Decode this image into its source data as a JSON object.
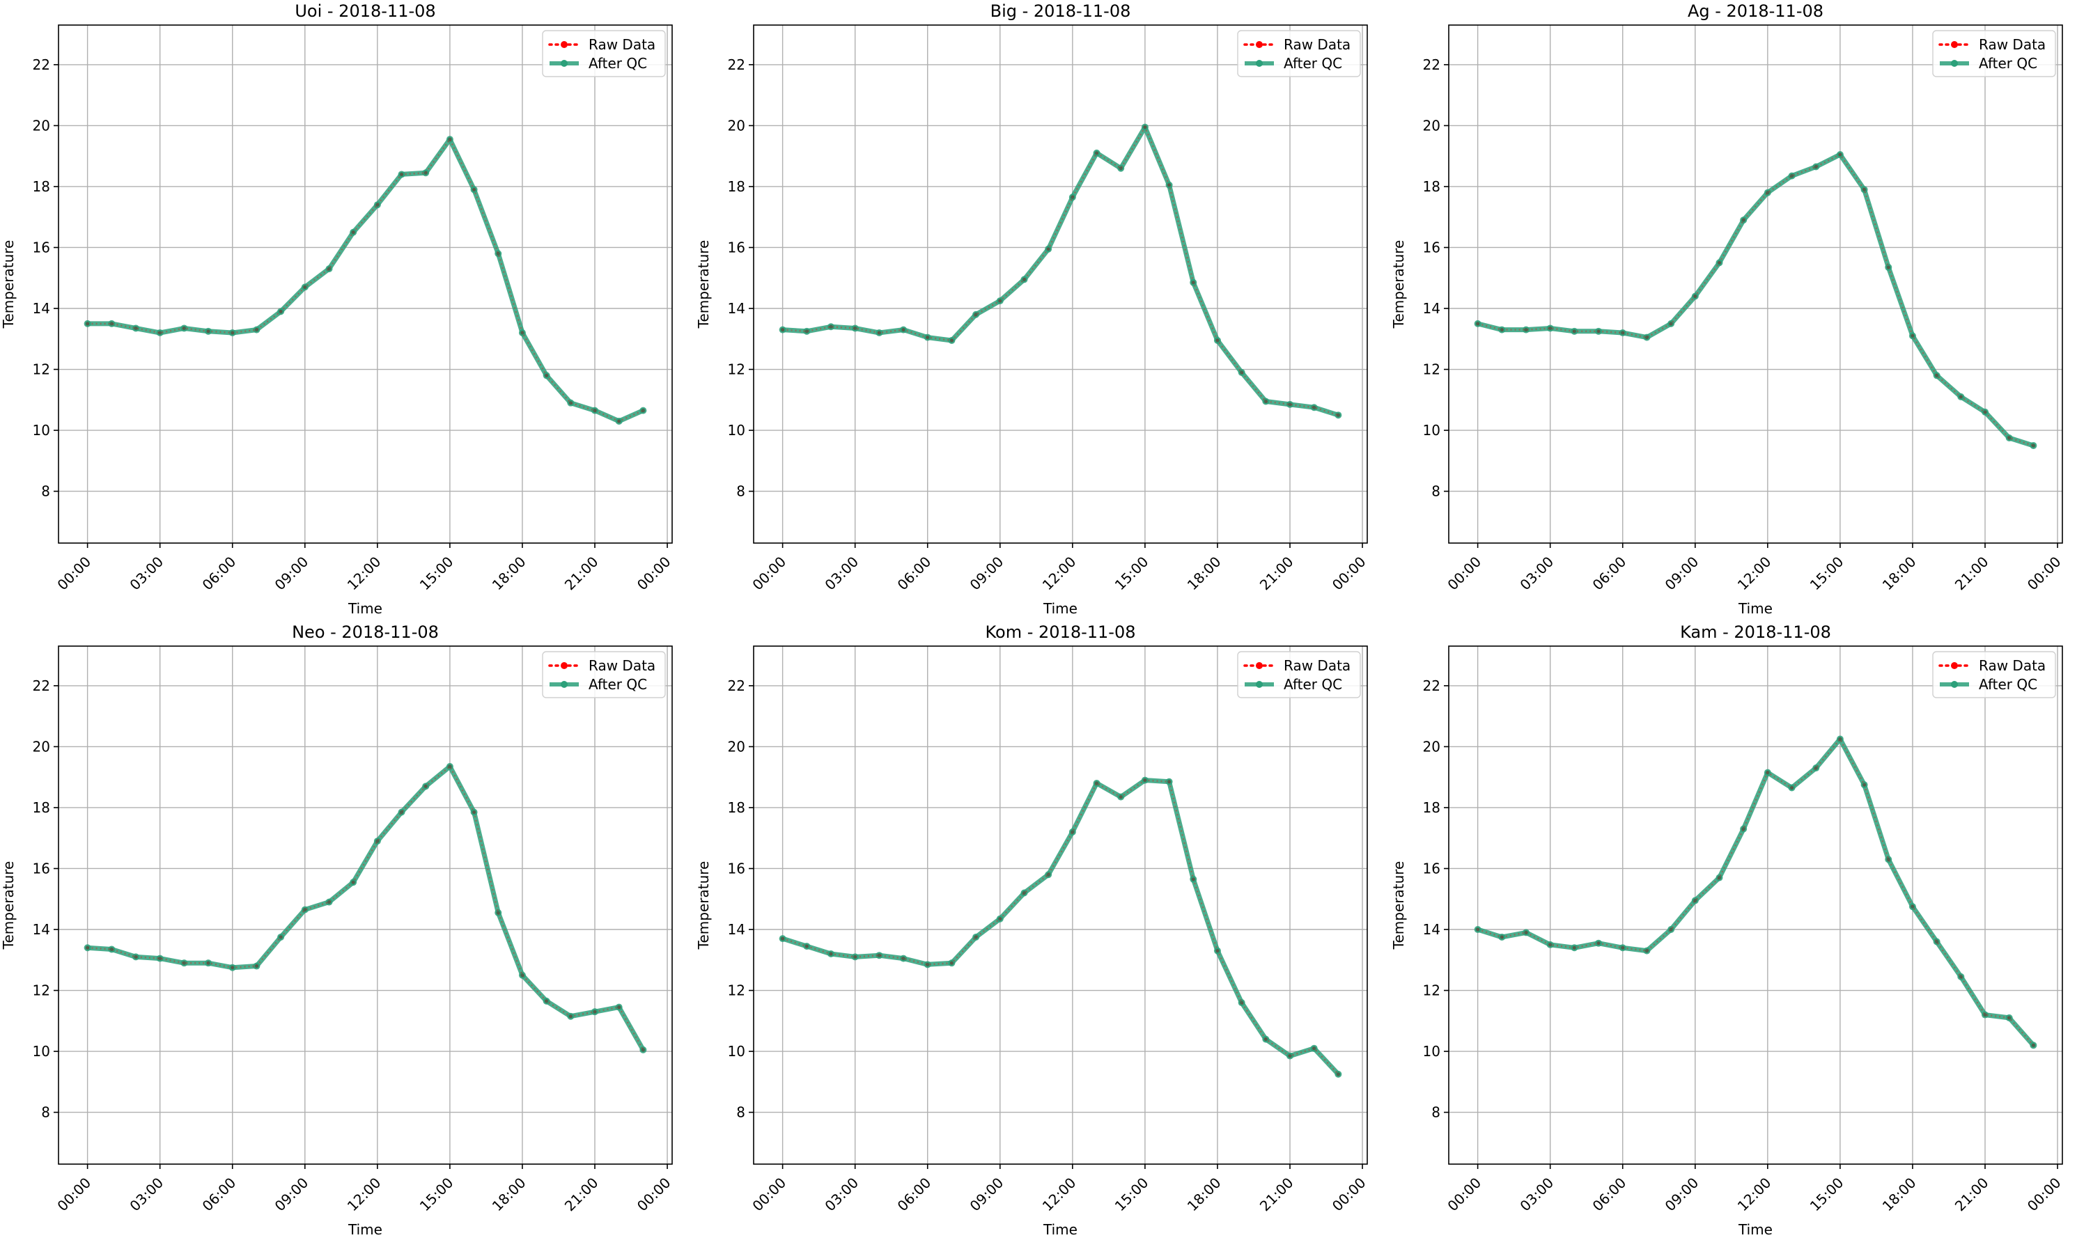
{
  "colors": {
    "raw": "#ff0000",
    "qc": "#2ca07a",
    "grid": "#b0b0b0",
    "axis": "#000000"
  },
  "chart_data": [
    {
      "type": "line",
      "title": "Uoi - 2018-11-08",
      "xlabel": "Time",
      "ylabel": "Temperature",
      "x_ticks": [
        "00:00",
        "03:00",
        "06:00",
        "09:00",
        "12:00",
        "15:00",
        "18:00",
        "21:00",
        "00:00"
      ],
      "y_ticks": [
        8,
        10,
        12,
        14,
        16,
        18,
        20,
        22
      ],
      "xlim": [
        -1.2,
        24.2
      ],
      "ylim": [
        6.3,
        23.3
      ],
      "grid": true,
      "legend": "top-right",
      "series": [
        {
          "name": "Raw Data",
          "style": "dotted",
          "values": [
            13.5,
            13.5,
            13.35,
            13.2,
            13.35,
            13.25,
            13.2,
            13.3,
            13.9,
            14.7,
            15.3,
            16.5,
            17.4,
            18.4,
            18.45,
            19.55,
            17.9,
            15.8,
            13.2,
            11.8,
            10.9,
            10.65,
            10.3,
            10.65
          ]
        },
        {
          "name": "After QC",
          "style": "solid",
          "values": [
            13.5,
            13.5,
            13.35,
            13.2,
            13.35,
            13.25,
            13.2,
            13.3,
            13.9,
            14.7,
            15.3,
            16.5,
            17.4,
            18.4,
            18.45,
            19.55,
            17.9,
            15.8,
            13.2,
            11.8,
            10.9,
            10.65,
            10.3,
            10.65
          ]
        }
      ]
    },
    {
      "type": "line",
      "title": "Big - 2018-11-08",
      "xlabel": "Time",
      "ylabel": "Temperature",
      "x_ticks": [
        "00:00",
        "03:00",
        "06:00",
        "09:00",
        "12:00",
        "15:00",
        "18:00",
        "21:00",
        "00:00"
      ],
      "y_ticks": [
        8,
        10,
        12,
        14,
        16,
        18,
        20,
        22
      ],
      "xlim": [
        -1.2,
        24.2
      ],
      "ylim": [
        6.3,
        23.3
      ],
      "grid": true,
      "legend": "top-right",
      "series": [
        {
          "name": "Raw Data",
          "style": "dotted",
          "values": [
            13.3,
            13.25,
            13.4,
            13.35,
            13.2,
            13.3,
            13.05,
            12.95,
            13.8,
            14.25,
            14.95,
            15.95,
            17.65,
            19.1,
            18.6,
            19.95,
            18.05,
            14.85,
            12.95,
            11.9,
            10.95,
            10.85,
            10.75,
            10.5
          ]
        },
        {
          "name": "After QC",
          "style": "solid",
          "values": [
            13.3,
            13.25,
            13.4,
            13.35,
            13.2,
            13.3,
            13.05,
            12.95,
            13.8,
            14.25,
            14.95,
            15.95,
            17.65,
            19.1,
            18.6,
            19.95,
            18.05,
            14.85,
            12.95,
            11.9,
            10.95,
            10.85,
            10.75,
            10.5
          ]
        }
      ]
    },
    {
      "type": "line",
      "title": "Ag - 2018-11-08",
      "xlabel": "Time",
      "ylabel": "Temperature",
      "x_ticks": [
        "00:00",
        "03:00",
        "06:00",
        "09:00",
        "12:00",
        "15:00",
        "18:00",
        "21:00",
        "00:00"
      ],
      "y_ticks": [
        8,
        10,
        12,
        14,
        16,
        18,
        20,
        22
      ],
      "xlim": [
        -1.2,
        24.2
      ],
      "ylim": [
        6.3,
        23.3
      ],
      "grid": true,
      "legend": "top-right",
      "series": [
        {
          "name": "Raw Data",
          "style": "dotted",
          "values": [
            13.5,
            13.3,
            13.3,
            13.35,
            13.25,
            13.25,
            13.2,
            13.05,
            13.5,
            14.4,
            15.5,
            16.9,
            17.8,
            18.35,
            18.65,
            19.05,
            17.9,
            15.35,
            13.1,
            11.8,
            11.1,
            10.6,
            9.75,
            9.5
          ]
        },
        {
          "name": "After QC",
          "style": "solid",
          "values": [
            13.5,
            13.3,
            13.3,
            13.35,
            13.25,
            13.25,
            13.2,
            13.05,
            13.5,
            14.4,
            15.5,
            16.9,
            17.8,
            18.35,
            18.65,
            19.05,
            17.9,
            15.35,
            13.1,
            11.8,
            11.1,
            10.6,
            9.75,
            9.5
          ]
        }
      ]
    },
    {
      "type": "line",
      "title": "Neo - 2018-11-08",
      "xlabel": "Time",
      "ylabel": "Temperature",
      "x_ticks": [
        "00:00",
        "03:00",
        "06:00",
        "09:00",
        "12:00",
        "15:00",
        "18:00",
        "21:00",
        "00:00"
      ],
      "y_ticks": [
        8,
        10,
        12,
        14,
        16,
        18,
        20,
        22
      ],
      "xlim": [
        -1.2,
        24.2
      ],
      "ylim": [
        6.3,
        23.3
      ],
      "grid": true,
      "legend": "top-right",
      "series": [
        {
          "name": "Raw Data",
          "style": "dotted",
          "values": [
            13.4,
            13.35,
            13.1,
            13.05,
            12.9,
            12.9,
            12.75,
            12.8,
            13.75,
            14.65,
            14.9,
            15.55,
            16.9,
            17.85,
            18.7,
            19.35,
            17.85,
            14.55,
            12.5,
            11.65,
            11.15,
            11.3,
            11.45,
            10.05
          ]
        },
        {
          "name": "After QC",
          "style": "solid",
          "values": [
            13.4,
            13.35,
            13.1,
            13.05,
            12.9,
            12.9,
            12.75,
            12.8,
            13.75,
            14.65,
            14.9,
            15.55,
            16.9,
            17.85,
            18.7,
            19.35,
            17.85,
            14.55,
            12.5,
            11.65,
            11.15,
            11.3,
            11.45,
            10.05
          ]
        }
      ]
    },
    {
      "type": "line",
      "title": "Kom - 2018-11-08",
      "xlabel": "Time",
      "ylabel": "Temperature",
      "x_ticks": [
        "00:00",
        "03:00",
        "06:00",
        "09:00",
        "12:00",
        "15:00",
        "18:00",
        "21:00",
        "00:00"
      ],
      "y_ticks": [
        8,
        10,
        12,
        14,
        16,
        18,
        20,
        22
      ],
      "xlim": [
        -1.2,
        24.2
      ],
      "ylim": [
        6.3,
        23.3
      ],
      "grid": true,
      "legend": "top-right",
      "series": [
        {
          "name": "Raw Data",
          "style": "dotted",
          "values": [
            13.7,
            13.45,
            13.2,
            13.1,
            13.15,
            13.05,
            12.85,
            12.9,
            13.75,
            14.35,
            15.2,
            15.8,
            17.2,
            18.8,
            18.35,
            18.9,
            18.85,
            15.65,
            13.3,
            11.6,
            10.4,
            9.85,
            10.1,
            9.25
          ]
        },
        {
          "name": "After QC",
          "style": "solid",
          "values": [
            13.7,
            13.45,
            13.2,
            13.1,
            13.15,
            13.05,
            12.85,
            12.9,
            13.75,
            14.35,
            15.2,
            15.8,
            17.2,
            18.8,
            18.35,
            18.9,
            18.85,
            15.65,
            13.3,
            11.6,
            10.4,
            9.85,
            10.1,
            9.25
          ]
        }
      ]
    },
    {
      "type": "line",
      "title": "Kam - 2018-11-08",
      "xlabel": "Time",
      "ylabel": "Temperature",
      "x_ticks": [
        "00:00",
        "03:00",
        "06:00",
        "09:00",
        "12:00",
        "15:00",
        "18:00",
        "21:00",
        "00:00"
      ],
      "y_ticks": [
        8,
        10,
        12,
        14,
        16,
        18,
        20,
        22
      ],
      "xlim": [
        -1.2,
        24.2
      ],
      "ylim": [
        6.3,
        23.3
      ],
      "grid": true,
      "legend": "top-right",
      "series": [
        {
          "name": "Raw Data",
          "style": "dotted",
          "values": [
            14.0,
            13.75,
            13.9,
            13.5,
            13.4,
            13.55,
            13.4,
            13.3,
            14.0,
            14.95,
            15.7,
            17.3,
            19.15,
            18.65,
            19.3,
            20.25,
            18.75,
            16.3,
            14.75,
            13.6,
            12.45,
            11.2,
            11.1,
            10.2
          ]
        },
        {
          "name": "After QC",
          "style": "solid",
          "values": [
            14.0,
            13.75,
            13.9,
            13.5,
            13.4,
            13.55,
            13.4,
            13.3,
            14.0,
            14.95,
            15.7,
            17.3,
            19.15,
            18.65,
            19.3,
            20.25,
            18.75,
            16.3,
            14.75,
            13.6,
            12.45,
            11.2,
            11.1,
            10.2
          ]
        }
      ]
    }
  ]
}
